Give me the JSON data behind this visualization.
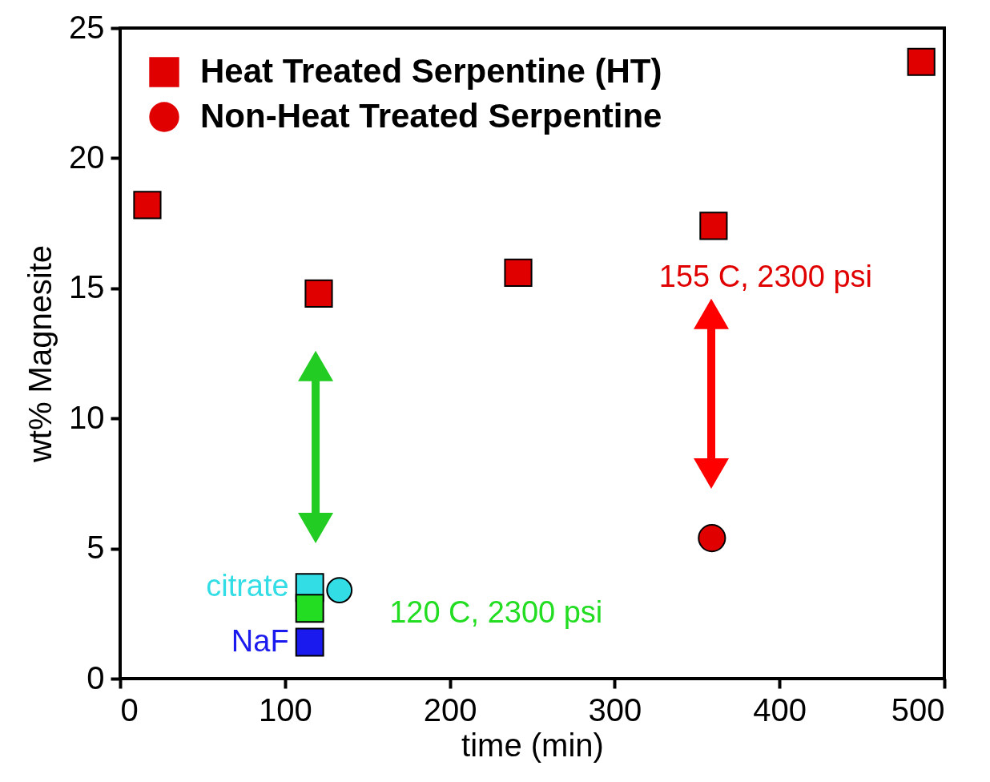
{
  "chart_data": {
    "type": "scatter",
    "xlabel": "time (min)",
    "ylabel": "wt% Magnesite",
    "xlim": [
      0,
      500
    ],
    "xticks": [
      0,
      100,
      200,
      300,
      400,
      500
    ],
    "ylim": [
      0,
      25
    ],
    "yticks": [
      0,
      5,
      10,
      15,
      20,
      25
    ],
    "grid": false,
    "legend": "top left",
    "series": [
      {
        "name": "Heat Treated Serpentine (HT)",
        "color": "#e00000",
        "marker": "square",
        "x": [
          16.5,
          120.5,
          241.5,
          360,
          486
        ],
        "values": [
          18.2,
          14.8,
          15.6,
          17.4,
          23.7
        ]
      },
      {
        "name": "Non-Heat Treated Serpentine",
        "color": "#e00000",
        "marker": "circle",
        "x": [
          359
        ],
        "values": [
          5.4
        ]
      },
      {
        "name": "citrate",
        "color": "#33dde6",
        "marker": "square",
        "x": [
          115
        ],
        "values": [
          3.5
        ]
      },
      {
        "color": "#33dde6",
        "marker": "circle",
        "x": [
          133
        ],
        "values": [
          3.4
        ]
      },
      {
        "color": "#22dd22",
        "marker": "square",
        "x": [
          115
        ],
        "values": [
          2.7
        ]
      },
      {
        "name": "NaF",
        "color": "#1a1aee",
        "marker": "square",
        "x": [
          115
        ],
        "values": [
          1.4
        ]
      }
    ],
    "annotations": [
      "155 C, 2300 psi",
      "120 C, 2300 psi"
    ]
  }
}
